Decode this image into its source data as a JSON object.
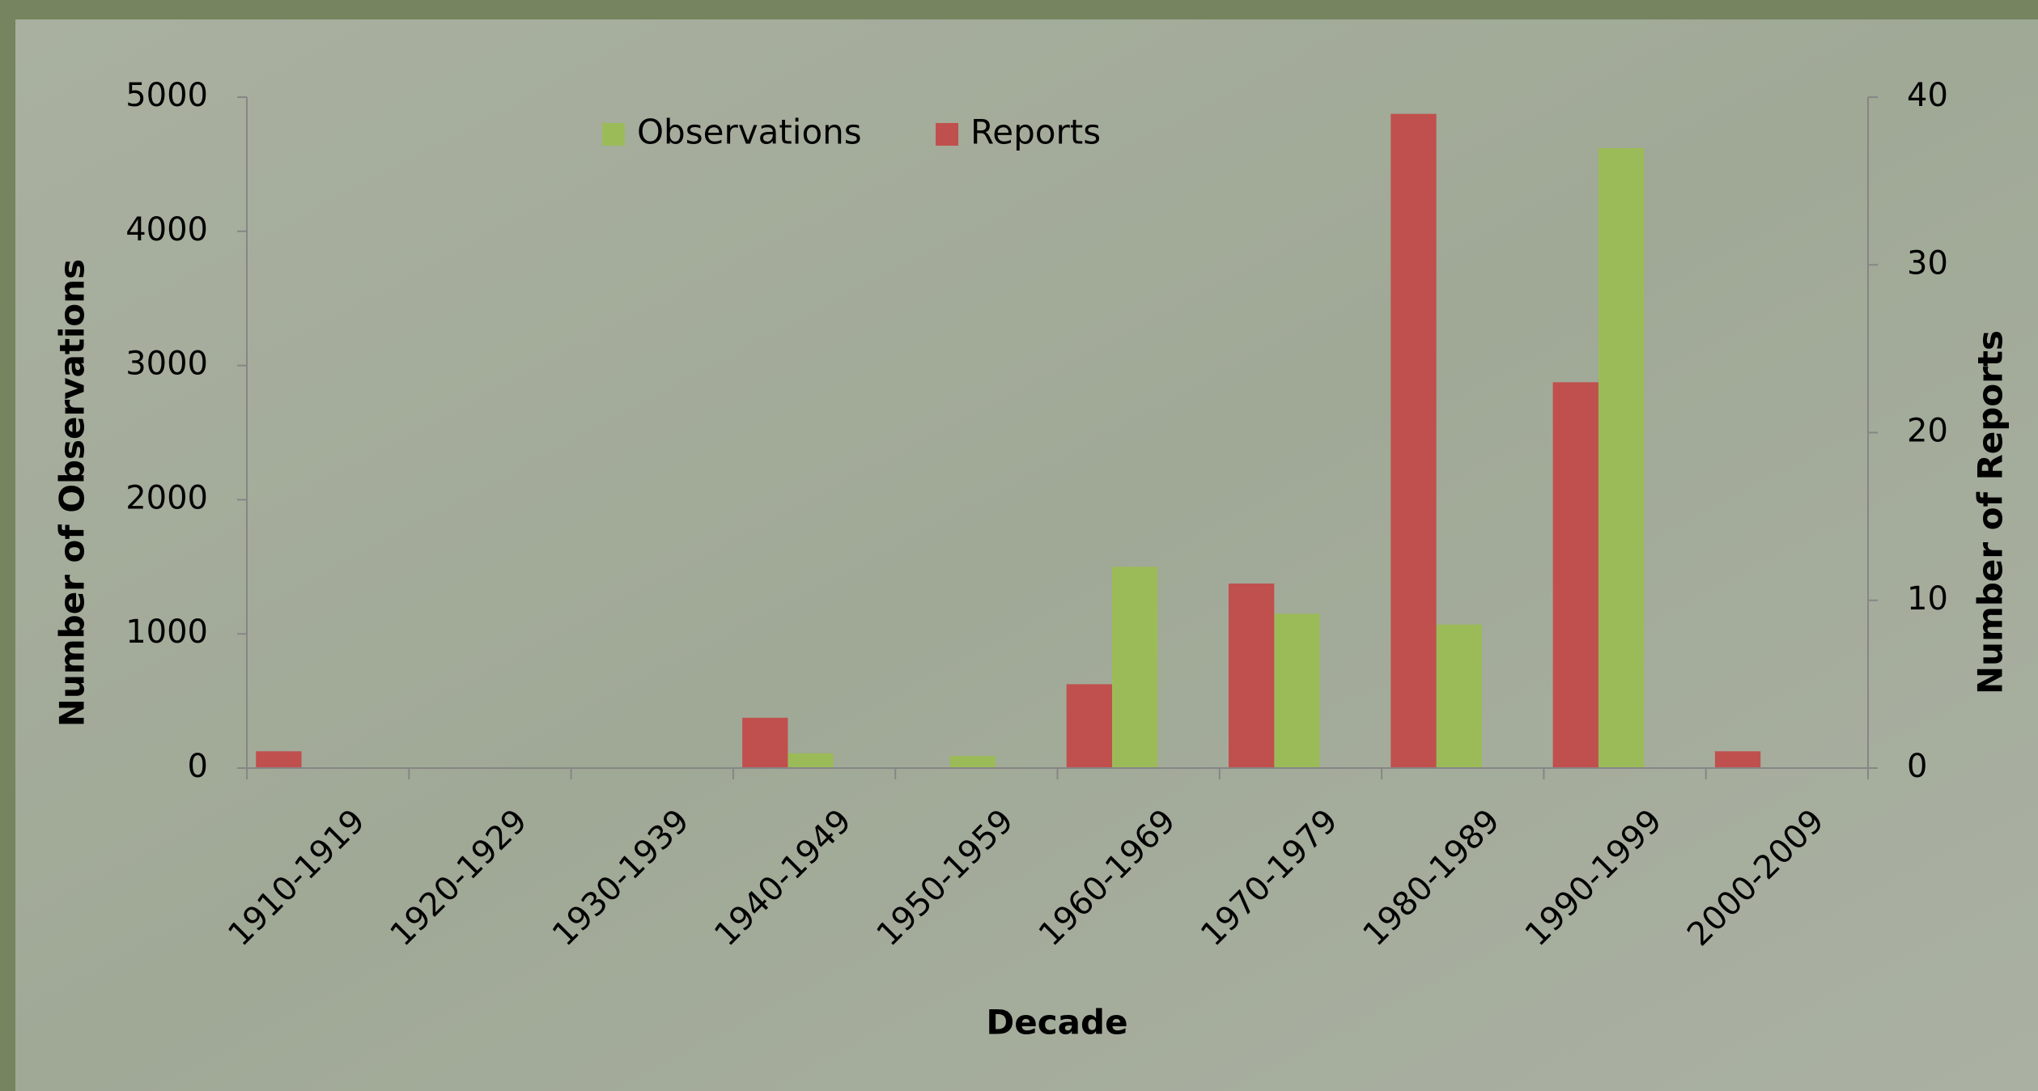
{
  "chart_data": {
    "type": "bar",
    "x_label": "Decade",
    "y_label": "Number of Observations",
    "y2_label": "Number of Reports",
    "categories": [
      "1910-1919",
      "1920-1929",
      "1930-1939",
      "1940-1949",
      "1950-1959",
      "1960-1969",
      "1970-1979",
      "1980-1989",
      "1990-1999",
      "2000-2009"
    ],
    "series": [
      {
        "name": "Observations",
        "color": "#9bbb59",
        "values": [
          0,
          0,
          0,
          110,
          90,
          1500,
          1150,
          1070,
          4620,
          0
        ]
      },
      {
        "name": "Reports",
        "color": "#c0504d",
        "axis": "y2",
        "values": [
          1,
          0,
          0,
          3,
          0,
          5,
          11,
          39,
          23,
          1
        ]
      }
    ],
    "ylim": [
      0,
      5000
    ],
    "yticks": [
      0,
      1000,
      2000,
      3000,
      4000,
      5000
    ],
    "y2lim": [
      0,
      40
    ],
    "y2ticks": [
      0,
      10,
      20,
      30,
      40
    ],
    "legend": "top"
  }
}
